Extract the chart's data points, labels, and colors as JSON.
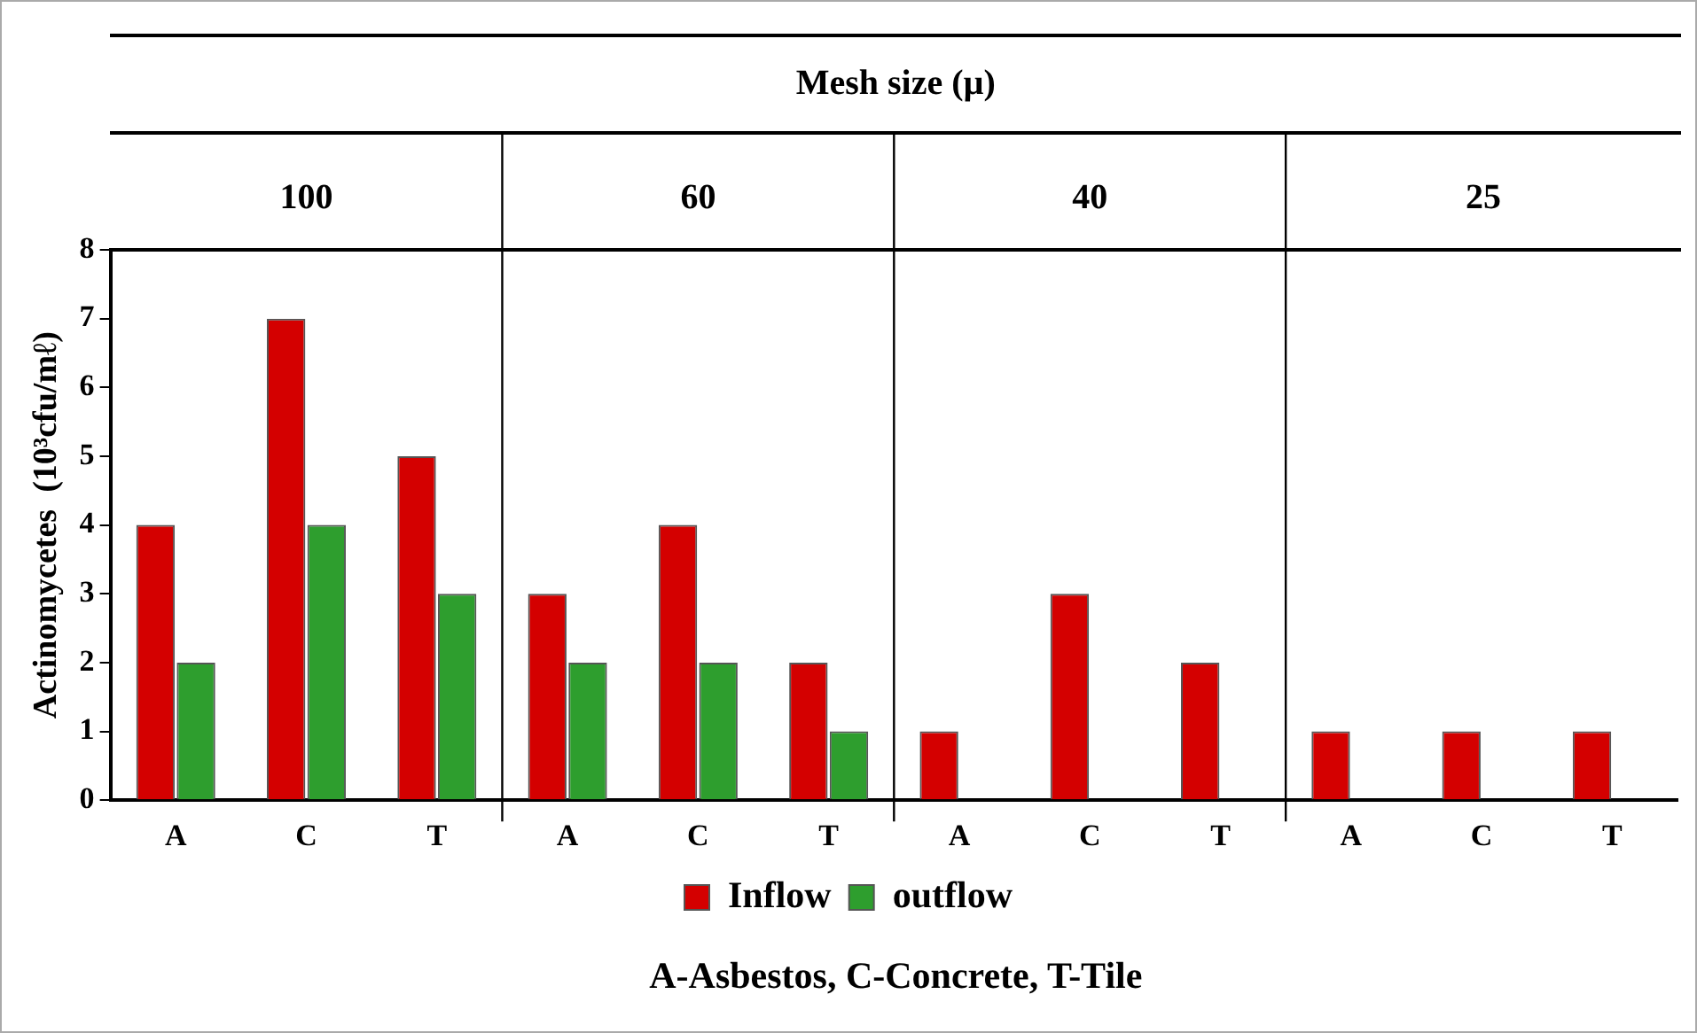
{
  "chart_data": {
    "type": "bar",
    "ylabel": "Actinomycetes  (10³cfu/mℓ)",
    "categories": [
      "A",
      "C",
      "T",
      "A",
      "C",
      "T",
      "A",
      "C",
      "T",
      "A",
      "C",
      "T"
    ],
    "series": [
      {
        "name": "Inflow",
        "color": "#d40000",
        "values": [
          4,
          7,
          5,
          3,
          4,
          2,
          1,
          3,
          2,
          1,
          1,
          1
        ]
      },
      {
        "name": "outflow",
        "color": "#2e9e2e",
        "values": [
          2,
          4,
          3,
          2,
          2,
          1,
          0,
          0,
          0,
          0,
          0,
          0
        ]
      }
    ],
    "ylim": [
      0,
      8
    ],
    "yticks": [
      0,
      1,
      2,
      3,
      4,
      5,
      6,
      7,
      8
    ],
    "grid": false,
    "legend": "bottom",
    "annotations": [
      "Mesh size (µ)",
      "100",
      "60",
      "40",
      "25",
      "A-Asbestos, C-Concrete, T-Tile"
    ]
  }
}
